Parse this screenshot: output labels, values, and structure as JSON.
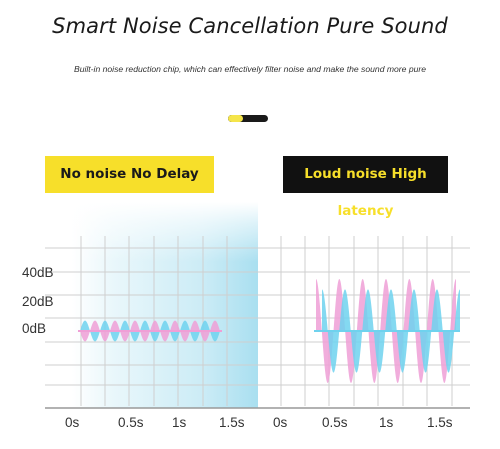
{
  "header": {
    "title": "Smart Noise Cancellation Pure Sound",
    "subtitle": "Built-in noise reduction chip, which can effectively filter noise and make the sound more pure"
  },
  "carousel": {
    "active_index": 0,
    "active_color": "#f5e54a",
    "inactive_color": "#1a1a1a"
  },
  "comparison": {
    "left": {
      "label": "No noise No Delay",
      "label_bg": "#f7df2a",
      "label_color": "#1a1a1a",
      "wave_amplitude_db": 8,
      "cycles": 7
    },
    "right": {
      "label": "Loud noise High latency",
      "label_bg": "#111111",
      "label_color": "#f7df2a",
      "wave_amplitude_db": 40,
      "cycles": 6
    }
  },
  "axes": {
    "y_labels": [
      "40dB",
      "20dB",
      "0dB"
    ],
    "x_labels_left": [
      "0s",
      "0.5s",
      "1s",
      "1.5s"
    ],
    "x_labels_right": [
      "0s",
      "0.5s",
      "1s",
      "1.5s"
    ]
  },
  "colors": {
    "wave_pink": "#ef9fd6",
    "wave_blue": "#6fd2ee",
    "grid": "#cfcfcf",
    "axis": "#999999"
  }
}
